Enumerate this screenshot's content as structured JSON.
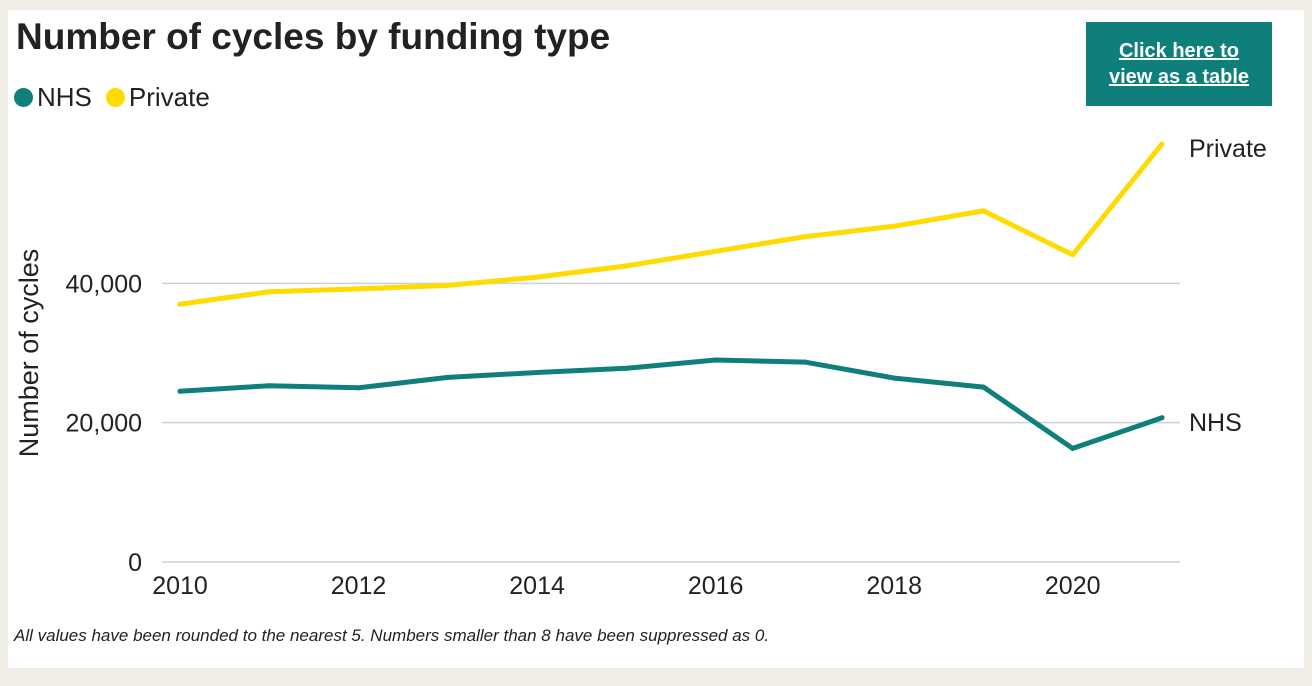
{
  "page": {
    "title": "Number of cycles by funding type",
    "table_link_label": "Click here to view as a table",
    "footnote": "All values have been rounded to the nearest 5. Numbers smaller than 8 have been suppressed as 0."
  },
  "colors": {
    "background": "#f0ede6",
    "panel": "#ffffff",
    "nhs": "#0f7f7b",
    "private": "#ffdb00",
    "gridline": "#d0d0d0",
    "text": "#222222"
  },
  "chart_data": {
    "type": "line",
    "title": "Number of cycles by funding type",
    "xlabel": "",
    "ylabel": "Number of cycles",
    "x": [
      2010,
      2011,
      2012,
      2013,
      2014,
      2015,
      2016,
      2017,
      2018,
      2019,
      2020,
      2021
    ],
    "xticks": [
      "2010",
      "2012",
      "2014",
      "2016",
      "2018",
      "2020"
    ],
    "yticks": [
      "0",
      "20,000",
      "40,000"
    ],
    "xlim": [
      2010,
      2021
    ],
    "ylim": [
      0,
      60000
    ],
    "grid": true,
    "legend_position": "top-left",
    "series": [
      {
        "name": "NHS",
        "color": "#0f7f7b",
        "end_label": "NHS",
        "values": [
          24500,
          25300,
          25000,
          26500,
          27200,
          27800,
          29000,
          28700,
          26400,
          25100,
          16300,
          20700
        ]
      },
      {
        "name": "Private",
        "color": "#ffdb00",
        "end_label": "Private",
        "values": [
          37000,
          38800,
          39200,
          39700,
          40900,
          42500,
          44600,
          46700,
          48200,
          50400,
          44100,
          60000
        ]
      }
    ]
  }
}
